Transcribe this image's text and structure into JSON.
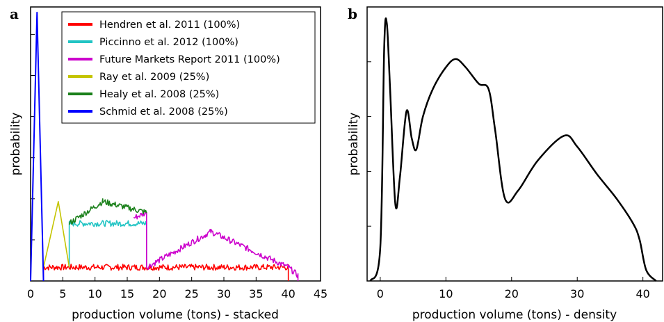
{
  "chart_data": [
    {
      "type": "line",
      "panel": "a",
      "xlabel": "production volume (tons) - stacked",
      "ylabel": "probability",
      "xlim": [
        0,
        45
      ],
      "xticks": [
        0,
        5,
        10,
        15,
        20,
        25,
        30,
        35,
        40,
        45
      ],
      "legend_position": "top-center",
      "grid": false,
      "series": [
        {
          "name": "Hendren et al. 2011 (100%)",
          "color": "#ff0000",
          "x": [
            2,
            2,
            40,
            40
          ],
          "y": [
            0,
            0.05,
            0.05,
            0
          ]
        },
        {
          "name": "Piccinno et al. 2012 (100%)",
          "color": "#22c4c4",
          "x": [
            6,
            6,
            18,
            18
          ],
          "y": [
            0.05,
            0.21,
            0.21,
            0.05
          ]
        },
        {
          "name": "Future Markets Report 2011 (100%)",
          "color": "#cc00cc",
          "x": [
            16,
            18,
            18,
            28,
            40,
            41.5,
            41.5
          ],
          "y": [
            0.23,
            0.25,
            0.05,
            0.18,
            0.05,
            0.02,
            0
          ]
        },
        {
          "name": "Ray et al. 2009 (25%)",
          "color": "#c4c400",
          "x": [
            2,
            4.3,
            6
          ],
          "y": [
            0.05,
            0.29,
            0.05
          ]
        },
        {
          "name": "Healy et al. 2008 (25%)",
          "color": "#1a801a",
          "x": [
            6,
            11.2,
            18
          ],
          "y": [
            0.21,
            0.29,
            0.25
          ]
        },
        {
          "name": "Schmid et al. 2008 (25%)",
          "color": "#0000ff",
          "x": [
            0,
            1,
            2
          ],
          "y": [
            0,
            0.98,
            0
          ]
        }
      ]
    },
    {
      "type": "line",
      "panel": "b",
      "xlabel": "production volume (tons) - density",
      "ylabel": "probability",
      "xlim": [
        -2,
        43
      ],
      "xticks": [
        0,
        10,
        20,
        30,
        40
      ],
      "grid": false,
      "series": [
        {
          "color": "#000000",
          "x": [
            -1.5,
            0,
            0.6,
            1,
            1.5,
            2.3,
            3,
            4,
            4.8,
            5.5,
            6.5,
            8,
            10,
            11.5,
            13,
            15,
            16.5,
            17.5,
            19,
            21,
            24,
            28,
            30,
            33,
            36,
            38.5,
            39.5,
            40.5,
            42
          ],
          "y": [
            0.0,
            0.12,
            0.85,
            0.94,
            0.7,
            0.28,
            0.38,
            0.62,
            0.52,
            0.48,
            0.6,
            0.7,
            0.78,
            0.81,
            0.78,
            0.72,
            0.7,
            0.55,
            0.3,
            0.33,
            0.44,
            0.53,
            0.49,
            0.39,
            0.3,
            0.21,
            0.15,
            0.04,
            0.0
          ]
        }
      ]
    }
  ],
  "panels": {
    "a": {
      "letter": "a"
    },
    "b": {
      "letter": "b"
    }
  }
}
